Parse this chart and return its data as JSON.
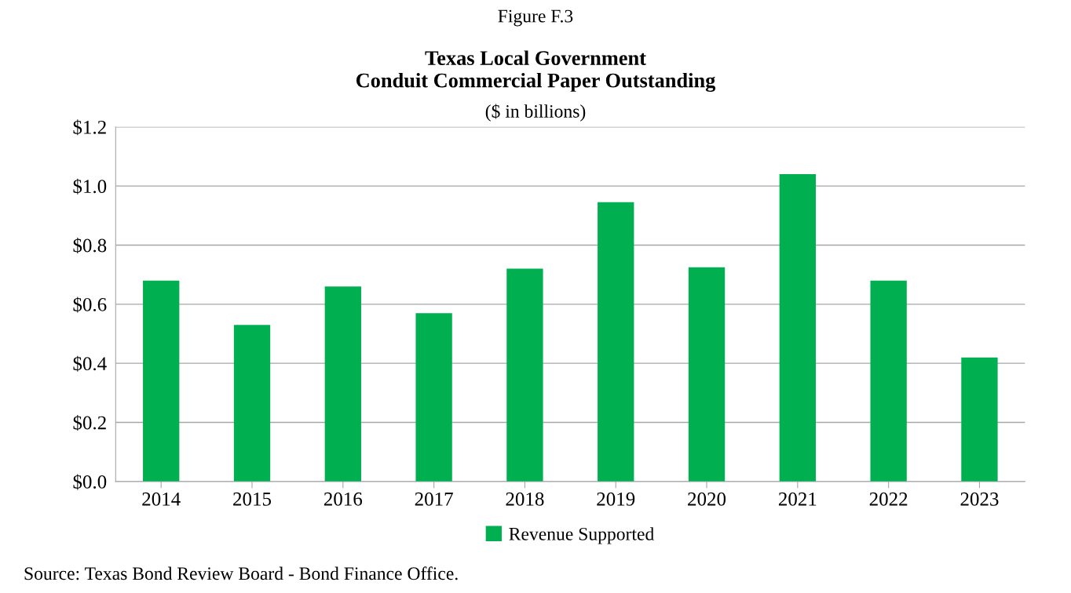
{
  "chart_data": {
    "type": "bar",
    "title": "Texas Local Government\nConduit Commercial Paper Outstanding",
    "subtitle": "($ in billions)",
    "annotations": [
      "Figure F.3",
      "Source: Texas Bond Review Board - Bond Finance Office."
    ],
    "categories": [
      "2014",
      "2015",
      "2016",
      "2017",
      "2018",
      "2019",
      "2020",
      "2021",
      "2022",
      "2023"
    ],
    "series": [
      {
        "name": "Revenue Supported",
        "color": "#00b050",
        "values": [
          0.68,
          0.53,
          0.66,
          0.57,
          0.72,
          0.945,
          0.725,
          1.04,
          0.68,
          0.42
        ]
      }
    ],
    "ylim": [
      0,
      1.2
    ],
    "yticks": [
      {
        "value": 0,
        "label": "$0.0"
      },
      {
        "value": 0.2,
        "label": "$0.2"
      },
      {
        "value": 0.4,
        "label": "$0.4"
      },
      {
        "value": 0.6,
        "label": "$0.6"
      },
      {
        "value": 0.8,
        "label": "$0.8"
      },
      {
        "value": 1.0,
        "label": "$1.0"
      },
      {
        "value": 1.2,
        "label": "$1.2"
      }
    ],
    "grid": "y",
    "legend": "bottom"
  }
}
